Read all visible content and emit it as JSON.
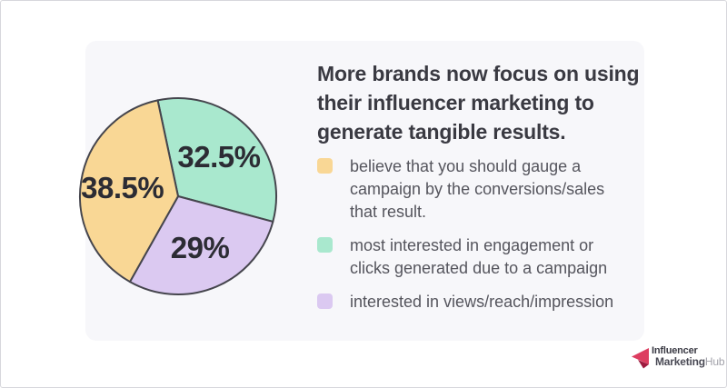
{
  "page": {
    "background": "#ffffff",
    "card_background": "#f7f7fa",
    "frame_border_color": "#d7d7dc"
  },
  "chart_data": {
    "type": "pie",
    "title": "More brands now focus on using\ntheir influencer marketing to\ngenerate tangible results.",
    "legend_position": "right",
    "start_angle_deg": -12,
    "stroke_color": "#45454d",
    "label_color": "#2c2c34",
    "slices": [
      {
        "name": "conversions-sales",
        "value": 38.5,
        "label": "38.5%",
        "color": "#f9d795",
        "description": "believe that you should gauge a\ncampaign by the conversions/sales\nthat result."
      },
      {
        "name": "engagement-clicks",
        "value": 32.5,
        "label": "32.5%",
        "color": "#a9e8ce",
        "description": "most interested in engagement or\nclicks generated due to a campaign"
      },
      {
        "name": "views-reach-impression",
        "value": 29,
        "label": "29%",
        "color": "#dbc9f1",
        "description": "interested in views/reach/impression"
      }
    ]
  },
  "logo": {
    "line1": "Influencer",
    "line2_dark": "Marketing",
    "line2_light": "Hub",
    "icon_color_main": "#dd3d60",
    "icon_color_fold": "#9e1b3f"
  }
}
